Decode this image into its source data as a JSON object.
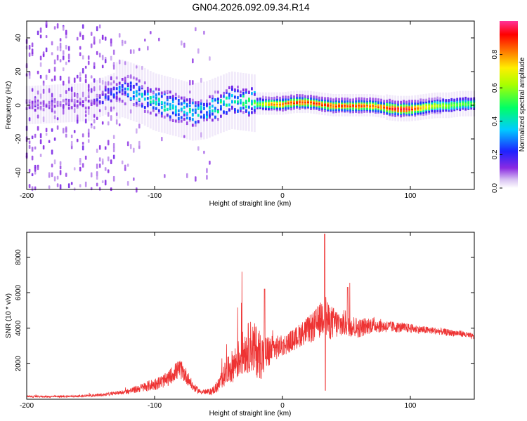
{
  "title": "GN04.2026.092.09.34.R14",
  "colors": {
    "snr_line": "#ee3333",
    "axis": "#000000",
    "background": "#ffffff"
  },
  "chart_data": [
    {
      "type": "heatmap",
      "title": "",
      "xlabel": "Height of straight line (km)",
      "ylabel": "Frequency (Hz)",
      "xlim": [
        -200,
        150
      ],
      "ylim": [
        -50,
        50
      ],
      "x_ticks": [
        -200,
        -100,
        0,
        100
      ],
      "y_ticks": [
        -40,
        -20,
        0,
        20,
        40
      ],
      "x_tick_labels": [
        "-200",
        "-100",
        "0",
        "100"
      ],
      "y_tick_labels": [
        "-40",
        "-20",
        "0",
        "20",
        "40"
      ],
      "colorbar": {
        "label": "Normalized spectral amplitude",
        "range": [
          0,
          1
        ],
        "ticks": [
          0.0,
          0.2,
          0.4,
          0.6,
          0.8
        ],
        "tick_labels": [
          "0.0",
          "0.2",
          "0.4",
          "0.6",
          "0.8"
        ]
      },
      "ridge": {
        "x": [
          -200,
          -150,
          -125,
          -110,
          -100,
          -90,
          -80,
          -70,
          -60,
          -50,
          -40,
          -30,
          -20,
          -10,
          0,
          10,
          20,
          30,
          40,
          50,
          60,
          70,
          80,
          90,
          100,
          110,
          120,
          130,
          140,
          150
        ],
        "freq": [
          0,
          2,
          10,
          6,
          2,
          0,
          -2,
          -4,
          -3,
          0,
          3,
          2,
          1,
          1,
          1,
          2,
          2,
          1,
          0,
          0,
          0,
          0,
          -1,
          -2,
          -2,
          -1,
          0,
          0,
          1,
          1
        ],
        "amplitude": [
          0.12,
          0.12,
          0.3,
          0.4,
          0.45,
          0.42,
          0.4,
          0.45,
          0.35,
          0.45,
          0.45,
          0.45,
          0.55,
          0.8,
          0.85,
          0.9,
          0.9,
          0.9,
          0.9,
          0.9,
          0.9,
          0.85,
          0.9,
          0.95,
          0.95,
          0.75,
          0.65,
          0.6,
          0.55,
          0.55
        ]
      }
    },
    {
      "type": "line",
      "title": "",
      "xlabel": "Height of straight line (km)",
      "ylabel": "SNR (10 * v/v)",
      "xlim": [
        -200,
        150
      ],
      "ylim": [
        0,
        9400
      ],
      "x_ticks": [
        -200,
        -100,
        0,
        100
      ],
      "y_ticks": [
        2000,
        4000,
        6000,
        8000
      ],
      "x_tick_labels": [
        "-200",
        "-100",
        "0",
        "100"
      ],
      "y_tick_labels": [
        "2000",
        "4000",
        "6000",
        "8000"
      ],
      "series": [
        {
          "x": [
            -200,
            -180,
            -160,
            -140,
            -130,
            -120,
            -110,
            -100,
            -90,
            -85,
            -80,
            -75,
            -70,
            -65,
            -60,
            -55,
            -50,
            -45,
            -40,
            -35,
            -30,
            -25,
            -20,
            -15,
            -10,
            -5,
            0,
            5,
            10,
            15,
            20,
            25,
            30,
            33,
            35,
            40,
            45,
            50,
            55,
            60,
            70,
            80,
            90,
            100,
            110,
            120,
            130,
            140,
            150
          ],
          "y": [
            150,
            150,
            170,
            250,
            350,
            450,
            650,
            850,
            1100,
            1500,
            1700,
            1300,
            700,
            450,
            400,
            450,
            800,
            1400,
            1800,
            2200,
            2700,
            3000,
            2700,
            2400,
            2700,
            2900,
            3000,
            3200,
            3400,
            3700,
            3900,
            4100,
            4500,
            5000,
            4400,
            4300,
            4200,
            4300,
            4100,
            4000,
            4200,
            4100,
            4050,
            4000,
            3900,
            3850,
            3750,
            3700,
            3500
          ],
          "noise": [
            50,
            50,
            60,
            80,
            100,
            150,
            250,
            350,
            400,
            500,
            550,
            450,
            250,
            150,
            150,
            200,
            400,
            700,
            900,
            1100,
            1300,
            1500,
            1500,
            1300,
            900,
            700,
            600,
            600,
            650,
            700,
            750,
            900,
            1000,
            1400,
            1100,
            900,
            800,
            750,
            650,
            550,
            450,
            350,
            300,
            250,
            220,
            200,
            190,
            180,
            170
          ]
        }
      ]
    }
  ]
}
